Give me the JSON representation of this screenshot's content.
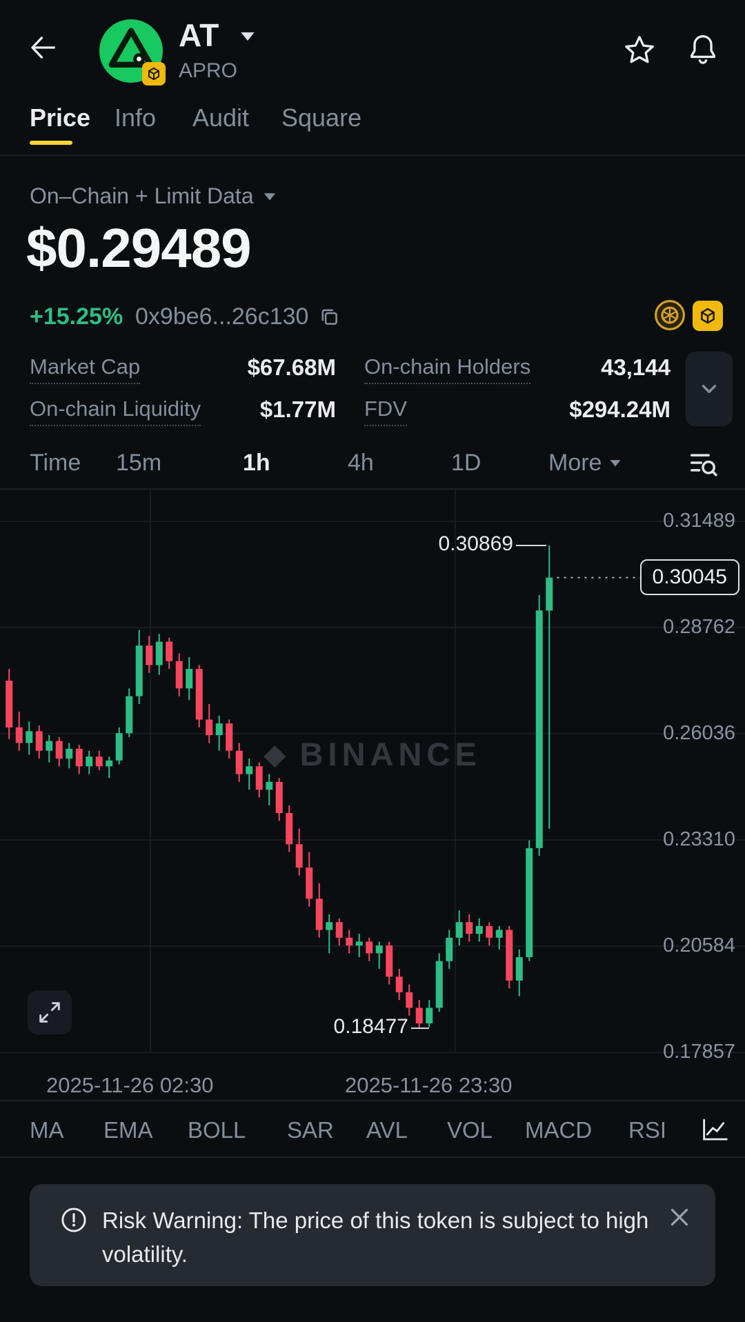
{
  "header": {
    "title": "AT",
    "subtitle": "APRO"
  },
  "tabs": [
    {
      "label": "Price",
      "active": true
    },
    {
      "label": "Info",
      "active": false
    },
    {
      "label": "Audit",
      "active": false
    },
    {
      "label": "Square",
      "active": false
    }
  ],
  "market": {
    "data_source_label": "On–Chain + Limit Data",
    "price": "$0.29489",
    "change": "+15.25%",
    "contract_address": "0x9be6...26c130"
  },
  "stats": [
    {
      "label": "Market Cap",
      "value": "$67.68M"
    },
    {
      "label": "On-chain Holders",
      "value": "43,144"
    },
    {
      "label": "On-chain Liquidity",
      "value": "$1.77M"
    },
    {
      "label": "FDV",
      "value": "$294.24M"
    }
  ],
  "timeframes": [
    {
      "label": "Time",
      "active": false
    },
    {
      "label": "15m",
      "active": false
    },
    {
      "label": "1h",
      "active": true
    },
    {
      "label": "4h",
      "active": false
    },
    {
      "label": "1D",
      "active": false
    },
    {
      "label": "More",
      "active": false
    }
  ],
  "chart_data": {
    "type": "candlestick",
    "watermark": "BINANCE",
    "y_axis_labels": [
      "0.31489",
      "0.28762",
      "0.26036",
      "0.23310",
      "0.20584",
      "0.17857"
    ],
    "y_max": 0.31489,
    "y_min": 0.17857,
    "x_axis_labels": [
      "2025-11-26 02:30",
      "2025-11-26 23:30"
    ],
    "high_label": "0.30869",
    "low_label": "0.18477",
    "last_price": "0.30045",
    "up_color": "#2ebd85",
    "down_color": "#f6465d",
    "v_gridlines": [
      218,
      660
    ],
    "candles": [
      [
        0.274,
        0.277,
        0.259,
        0.262
      ],
      [
        0.262,
        0.266,
        0.256,
        0.258
      ],
      [
        0.258,
        0.2635,
        0.255,
        0.261
      ],
      [
        0.261,
        0.2625,
        0.254,
        0.256
      ],
      [
        0.256,
        0.26,
        0.253,
        0.2585
      ],
      [
        0.2585,
        0.2595,
        0.252,
        0.254
      ],
      [
        0.254,
        0.258,
        0.2515,
        0.2565
      ],
      [
        0.2565,
        0.2575,
        0.25,
        0.252
      ],
      [
        0.252,
        0.256,
        0.25,
        0.2545
      ],
      [
        0.2545,
        0.256,
        0.251,
        0.252
      ],
      [
        0.252,
        0.2545,
        0.249,
        0.2535
      ],
      [
        0.2535,
        0.262,
        0.2525,
        0.2605
      ],
      [
        0.2605,
        0.272,
        0.2595,
        0.27
      ],
      [
        0.27,
        0.287,
        0.268,
        0.283
      ],
      [
        0.283,
        0.2855,
        0.276,
        0.278
      ],
      [
        0.278,
        0.286,
        0.2755,
        0.284
      ],
      [
        0.284,
        0.285,
        0.277,
        0.279
      ],
      [
        0.279,
        0.281,
        0.27,
        0.272
      ],
      [
        0.272,
        0.28,
        0.269,
        0.277
      ],
      [
        0.277,
        0.278,
        0.262,
        0.264
      ],
      [
        0.264,
        0.268,
        0.258,
        0.26
      ],
      [
        0.26,
        0.265,
        0.256,
        0.263
      ],
      [
        0.263,
        0.264,
        0.254,
        0.256
      ],
      [
        0.256,
        0.258,
        0.248,
        0.25
      ],
      [
        0.25,
        0.254,
        0.246,
        0.252
      ],
      [
        0.252,
        0.253,
        0.244,
        0.246
      ],
      [
        0.246,
        0.25,
        0.242,
        0.248
      ],
      [
        0.248,
        0.249,
        0.238,
        0.24
      ],
      [
        0.24,
        0.242,
        0.23,
        0.232
      ],
      [
        0.232,
        0.236,
        0.224,
        0.226
      ],
      [
        0.226,
        0.23,
        0.216,
        0.218
      ],
      [
        0.218,
        0.222,
        0.208,
        0.21
      ],
      [
        0.21,
        0.214,
        0.204,
        0.212
      ],
      [
        0.212,
        0.213,
        0.206,
        0.208
      ],
      [
        0.208,
        0.21,
        0.204,
        0.206
      ],
      [
        0.206,
        0.209,
        0.203,
        0.207
      ],
      [
        0.207,
        0.208,
        0.202,
        0.204
      ],
      [
        0.204,
        0.207,
        0.2,
        0.206
      ],
      [
        0.206,
        0.207,
        0.196,
        0.198
      ],
      [
        0.198,
        0.2,
        0.192,
        0.194
      ],
      [
        0.194,
        0.196,
        0.188,
        0.19
      ],
      [
        0.19,
        0.192,
        0.18477,
        0.186
      ],
      [
        0.186,
        0.192,
        0.185,
        0.19
      ],
      [
        0.19,
        0.204,
        0.189,
        0.202
      ],
      [
        0.202,
        0.21,
        0.2,
        0.208
      ],
      [
        0.208,
        0.215,
        0.206,
        0.212
      ],
      [
        0.212,
        0.214,
        0.207,
        0.209
      ],
      [
        0.209,
        0.213,
        0.207,
        0.211
      ],
      [
        0.211,
        0.212,
        0.206,
        0.208
      ],
      [
        0.208,
        0.211,
        0.205,
        0.21
      ],
      [
        0.21,
        0.211,
        0.195,
        0.197
      ],
      [
        0.197,
        0.205,
        0.193,
        0.203
      ],
      [
        0.203,
        0.233,
        0.202,
        0.231
      ],
      [
        0.231,
        0.296,
        0.229,
        0.292
      ],
      [
        0.292,
        0.30869,
        0.236,
        0.30045
      ]
    ]
  },
  "indicators": [
    "MA",
    "EMA",
    "BOLL",
    "SAR",
    "AVL",
    "VOL",
    "MACD",
    "RSI"
  ],
  "risk_warning": {
    "text": "Risk Warning: The price of this token is subject to high volatility."
  },
  "colors": {
    "background": "#0b0e11",
    "accent_yellow": "#fcd535",
    "badge_yellow": "#f0b90b",
    "green": "#2ebd85",
    "red": "#f6465d",
    "text_primary": "#eaecef",
    "text_secondary": "#848e9c"
  }
}
